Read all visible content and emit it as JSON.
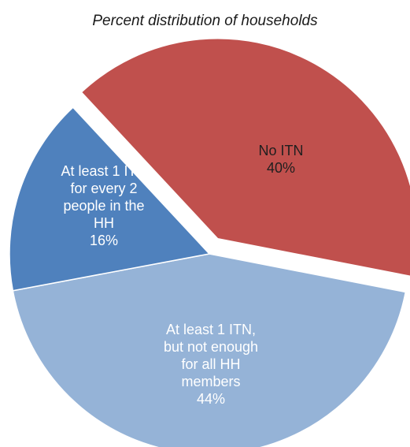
{
  "chart_data": {
    "type": "pie",
    "title": "Percent distribution of households",
    "slices": [
      {
        "label_lines": [
          "No ITN",
          "40%"
        ],
        "category": "No ITN",
        "value": 40,
        "color": "#c0504d",
        "label_color": "#1f1f1f",
        "exploded": true
      },
      {
        "label_lines": [
          "At least 1 ITN,",
          "but not enough",
          "for all HH",
          "members",
          "44%"
        ],
        "category": "At least 1 ITN, but not enough for all HH members",
        "value": 44,
        "color": "#95b3d7",
        "label_color": "#ffffff",
        "exploded": false
      },
      {
        "label_lines": [
          "At least 1 ITN",
          "for every 2",
          "people in the",
          "HH",
          "16%"
        ],
        "category": "At least 1 ITN for every 2 people in the HH",
        "value": 16,
        "color": "#4f81bd",
        "label_color": "#ffffff",
        "exploded": false
      }
    ]
  }
}
